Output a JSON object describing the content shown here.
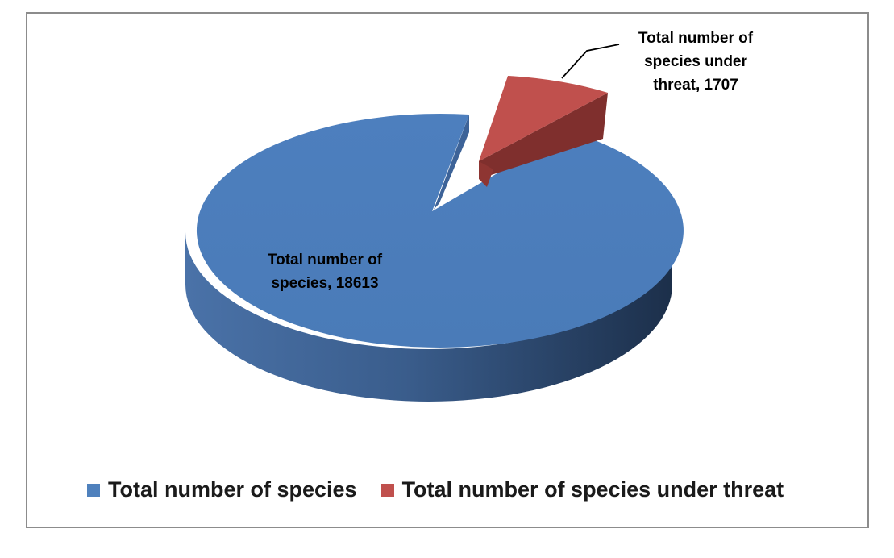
{
  "chart_data": {
    "type": "pie",
    "title": "",
    "categories": [
      "Total number of species",
      "Total number of species under threat"
    ],
    "values": [
      18613,
      1707
    ],
    "colors": [
      "#4F81BD",
      "#C0504D"
    ],
    "data_labels": [
      "Total number of\nspecies, 18613",
      "Total number of\nspecies under\nthreat, 1707"
    ],
    "legend": {
      "position": "bottom",
      "items": [
        "Total number of species",
        "Total number of species under threat"
      ]
    },
    "exploded_slice": "Total number of species under threat",
    "style": "3d"
  }
}
